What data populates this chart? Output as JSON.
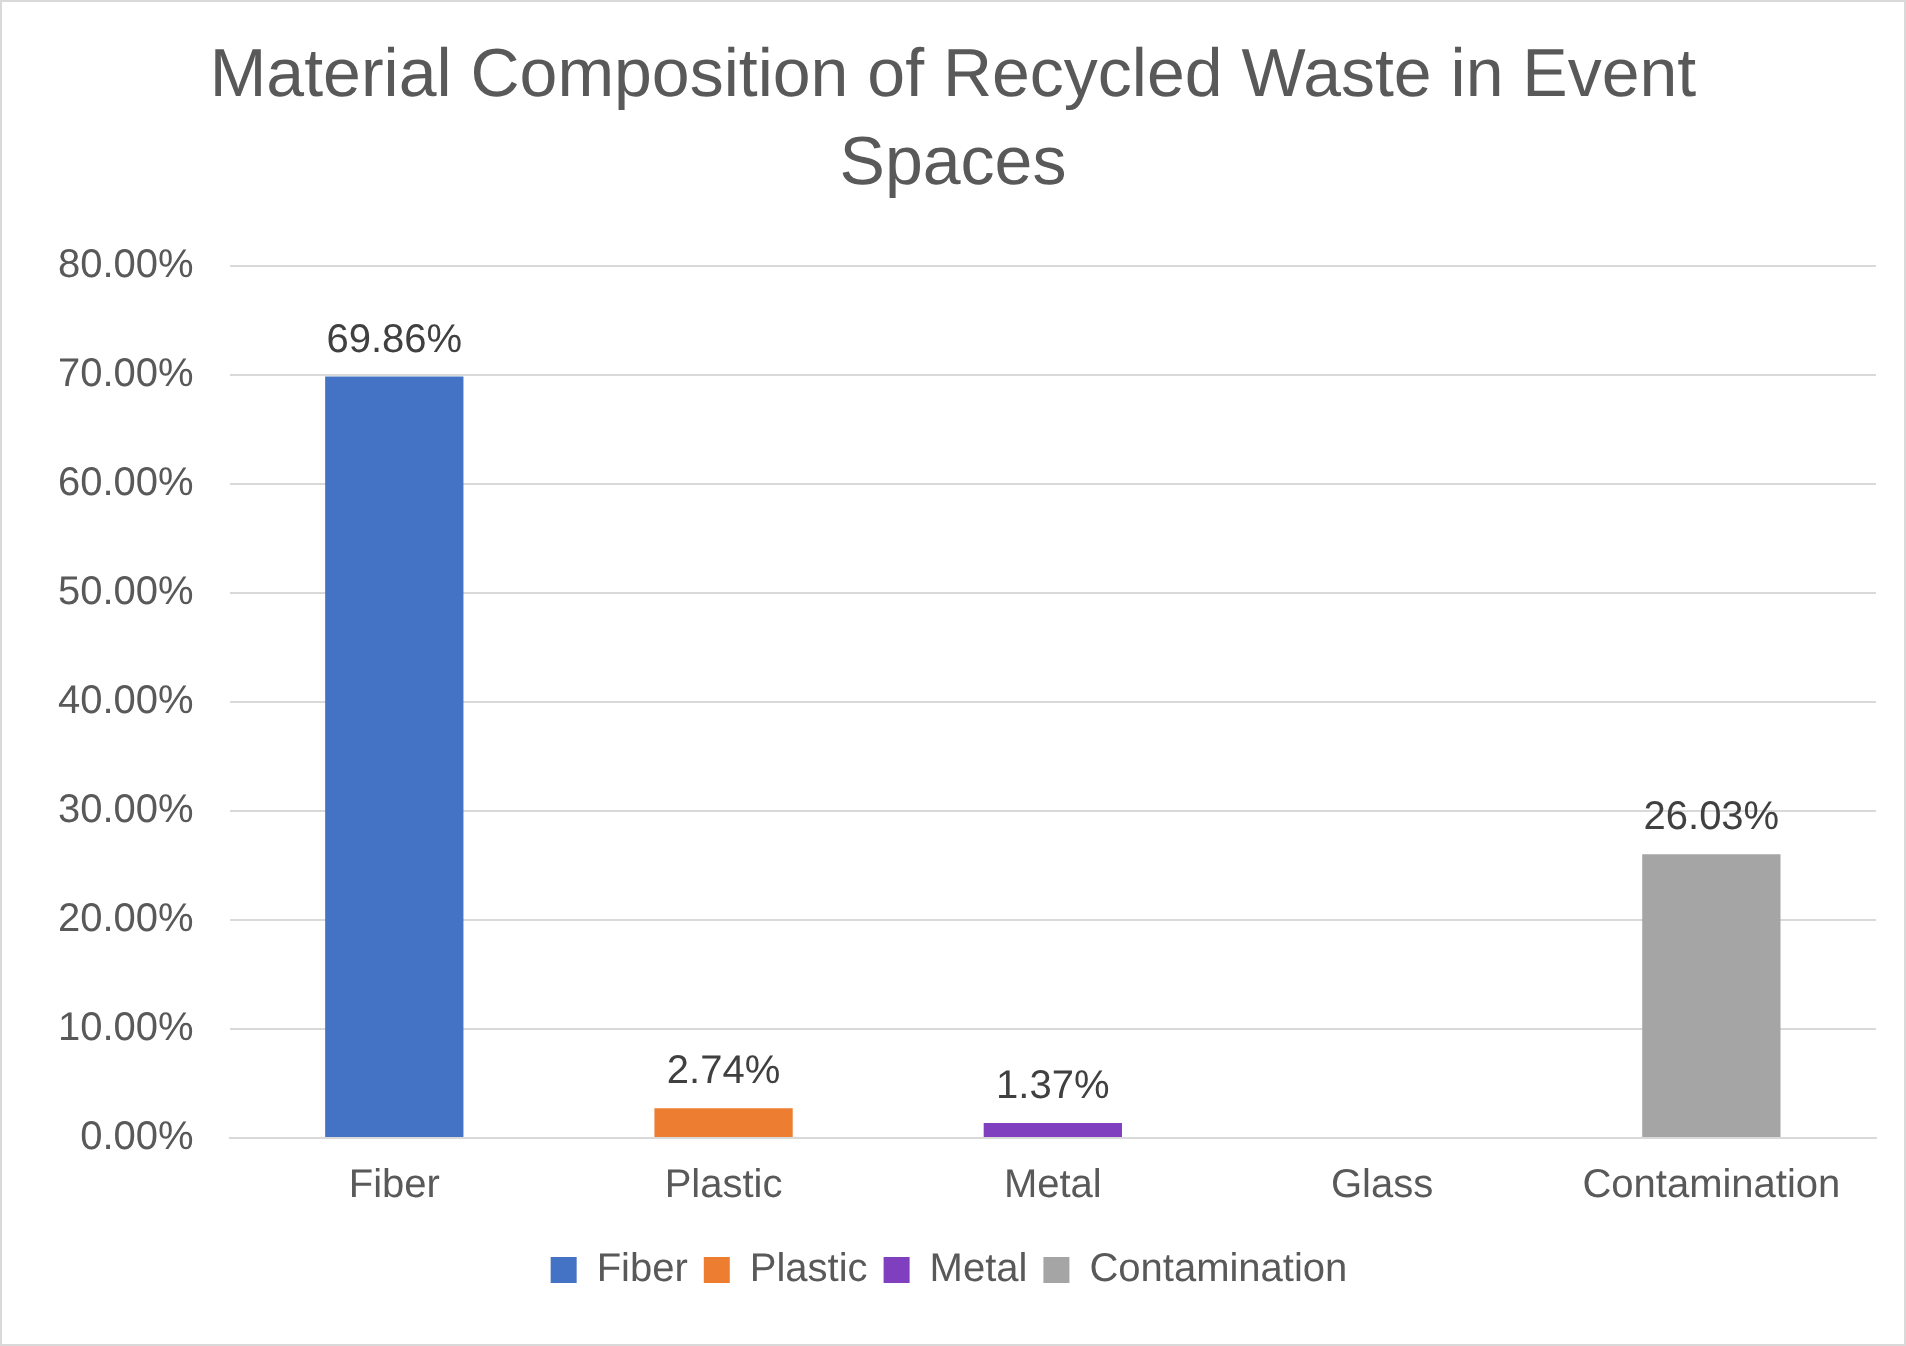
{
  "chart_data": {
    "type": "bar",
    "title": "Material Composition of Recycled Waste in Event Spaces",
    "categories": [
      "Fiber",
      "Plastic",
      "Metal",
      "Glass",
      "Contamination"
    ],
    "stacked": true,
    "series": [
      {
        "name": "Fiber",
        "color": "#4472c4",
        "values": [
          69.86,
          null,
          null,
          null,
          null
        ],
        "value_labels": [
          "69.86%",
          null,
          null,
          null,
          null
        ]
      },
      {
        "name": "Plastic",
        "color": "#ed7d31",
        "values": [
          null,
          2.74,
          null,
          null,
          null
        ],
        "value_labels": [
          null,
          "2.74%",
          null,
          null,
          null
        ]
      },
      {
        "name": "Metal",
        "color": "#7f3fbf",
        "values": [
          null,
          null,
          1.37,
          null,
          null
        ],
        "value_labels": [
          null,
          null,
          "1.37%",
          null,
          null
        ]
      },
      {
        "name": "Contamination",
        "color": "#a5a5a5",
        "values": [
          null,
          null,
          null,
          null,
          26.03
        ],
        "value_labels": [
          null,
          null,
          null,
          null,
          "26.03%"
        ]
      }
    ],
    "ylim": [
      0,
      80
    ],
    "yticks": [
      {
        "value": 0,
        "label": "0.00%"
      },
      {
        "value": 10,
        "label": "10.00%"
      },
      {
        "value": 20,
        "label": "20.00%"
      },
      {
        "value": 30,
        "label": "30.00%"
      },
      {
        "value": 40,
        "label": "40.00%"
      },
      {
        "value": 50,
        "label": "50.00%"
      },
      {
        "value": 60,
        "label": "60.00%"
      },
      {
        "value": 70,
        "label": "70.00%"
      },
      {
        "value": 80,
        "label": "80.00%"
      }
    ],
    "grid": "y",
    "legend": "bottom"
  }
}
